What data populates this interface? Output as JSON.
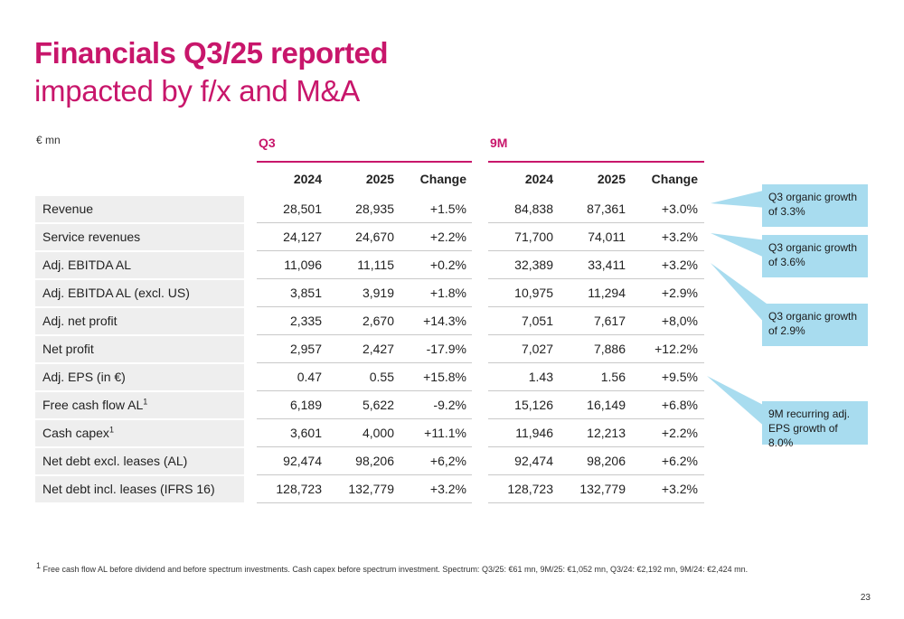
{
  "title": {
    "line1": "Financials Q3/25 reported",
    "line2": "impacted by f/x and M&A"
  },
  "unit_label": "€ mn",
  "sections": {
    "q3": "Q3",
    "nine_m": "9M"
  },
  "columns": {
    "y2024": "2024",
    "y2025": "2025",
    "change": "Change"
  },
  "rows": [
    {
      "label": "Revenue",
      "sup": "",
      "q3_2024": "28,501",
      "q3_2025": "28,935",
      "q3_change": "+1.5%",
      "m9_2024": "84,838",
      "m9_2025": "87,361",
      "m9_change": "+3.0%"
    },
    {
      "label": "Service revenues",
      "sup": "",
      "q3_2024": "24,127",
      "q3_2025": "24,670",
      "q3_change": "+2.2%",
      "m9_2024": "71,700",
      "m9_2025": "74,011",
      "m9_change": "+3.2%"
    },
    {
      "label": "Adj. EBITDA AL",
      "sup": "",
      "q3_2024": "11,096",
      "q3_2025": "11,115",
      "q3_change": "+0.2%",
      "m9_2024": "32,389",
      "m9_2025": "33,411",
      "m9_change": "+3.2%"
    },
    {
      "label": "Adj. EBITDA AL (excl. US)",
      "sup": "",
      "q3_2024": "3,851",
      "q3_2025": "3,919",
      "q3_change": "+1.8%",
      "m9_2024": "10,975",
      "m9_2025": "11,294",
      "m9_change": "+2.9%"
    },
    {
      "label": "Adj. net profit",
      "sup": "",
      "q3_2024": "2,335",
      "q3_2025": "2,670",
      "q3_change": "+14.3%",
      "m9_2024": "7,051",
      "m9_2025": "7,617",
      "m9_change": "+8,0%"
    },
    {
      "label": "Net profit",
      "sup": "",
      "q3_2024": "2,957",
      "q3_2025": "2,427",
      "q3_change": "-17.9%",
      "m9_2024": "7,027",
      "m9_2025": "7,886",
      "m9_change": "+12.2%"
    },
    {
      "label": "Adj. EPS (in €)",
      "sup": "",
      "q3_2024": "0.47",
      "q3_2025": "0.55",
      "q3_change": "+15.8%",
      "m9_2024": "1.43",
      "m9_2025": "1.56",
      "m9_change": "+9.5%"
    },
    {
      "label": "Free cash flow AL",
      "sup": "1",
      "q3_2024": "6,189",
      "q3_2025": "5,622",
      "q3_change": "-9.2%",
      "m9_2024": "15,126",
      "m9_2025": "16,149",
      "m9_change": "+6.8%"
    },
    {
      "label": "Cash capex",
      "sup": "1",
      "q3_2024": "3,601",
      "q3_2025": "4,000",
      "q3_change": "+11.1%",
      "m9_2024": "11,946",
      "m9_2025": "12,213",
      "m9_change": "+2.2%"
    },
    {
      "label": "Net debt excl. leases (AL)",
      "sup": "",
      "q3_2024": "92,474",
      "q3_2025": "98,206",
      "q3_change": "+6,2%",
      "m9_2024": "92,474",
      "m9_2025": "98,206",
      "m9_change": "+6.2%"
    },
    {
      "label": "Net debt incl. leases (IFRS 16)",
      "sup": "",
      "q3_2024": "128,723",
      "q3_2025": "132,779",
      "q3_change": "+3.2%",
      "m9_2024": "128,723",
      "m9_2025": "132,779",
      "m9_change": "+3.2%"
    }
  ],
  "callouts": [
    "Q3 organic growth of 3.3%",
    "Q3 organic growth of 3.6%",
    "Q3 organic growth of 2.9%",
    "9M recurring adj. EPS growth of 8.0%"
  ],
  "footnote": {
    "marker": "1",
    "text": "Free cash flow AL before dividend and before spectrum investments. Cash capex before spectrum investment. Spectrum: Q3/25: €61 mn, 9M/25: €1,052 mn, Q3/24: €2,192 mn, 9M/24: €2,424 mn."
  },
  "page_number": "23",
  "colors": {
    "magenta": "#c8166b",
    "callout": "#a8dcef",
    "label_bg": "#eeeeee"
  }
}
